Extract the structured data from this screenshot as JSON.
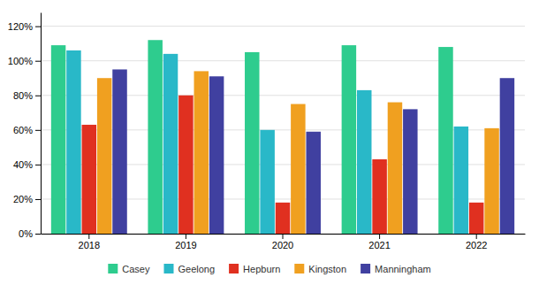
{
  "chart_data": {
    "type": "bar",
    "categories": [
      "2018",
      "2019",
      "2020",
      "2021",
      "2022"
    ],
    "series": [
      {
        "name": "Casey",
        "color": "#2ecc8e",
        "values": [
          109,
          112,
          105,
          109,
          108
        ]
      },
      {
        "name": "Geelong",
        "color": "#29b8c8",
        "values": [
          106,
          104,
          60,
          83,
          62
        ]
      },
      {
        "name": "Hepburn",
        "color": "#e03020",
        "values": [
          63,
          80,
          18,
          43,
          18
        ]
      },
      {
        "name": "Kingston",
        "color": "#f0a020",
        "values": [
          90,
          94,
          75,
          76,
          61
        ]
      },
      {
        "name": "Manningham",
        "color": "#4040a0",
        "values": [
          95,
          91,
          59,
          72,
          90
        ]
      }
    ],
    "ylim": [
      0,
      128
    ],
    "yticks": [
      {
        "value": 0,
        "label": "0%"
      },
      {
        "value": 20,
        "label": "20%"
      },
      {
        "value": 40,
        "label": "40%"
      },
      {
        "value": 60,
        "label": "60%"
      },
      {
        "value": 80,
        "label": "80%"
      },
      {
        "value": 100,
        "label": "100%"
      },
      {
        "value": 120,
        "label": "120%"
      }
    ],
    "grid": true,
    "legend": "bottom"
  }
}
